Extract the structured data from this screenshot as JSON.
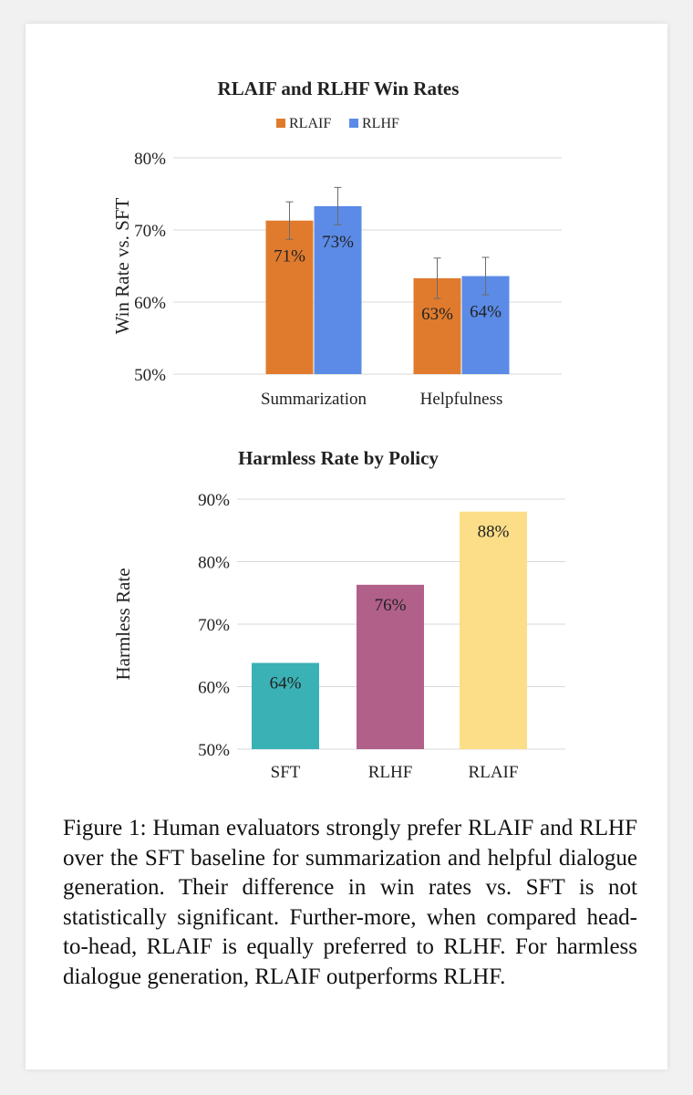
{
  "chart_data": [
    {
      "type": "bar",
      "title": "RLAIF and RLHF Win Rates",
      "ylabel": "Win Rate vs. SFT",
      "xlabel": "",
      "categories": [
        "Summarization",
        "Helpfulness"
      ],
      "series": [
        {
          "name": "RLAIF",
          "color": "#E07B2E",
          "values": [
            71.3,
            63.3
          ],
          "error": [
            2.6,
            2.8
          ],
          "labels": [
            "71%",
            "63%"
          ]
        },
        {
          "name": "RLHF",
          "color": "#5B8BE6",
          "values": [
            73.3,
            63.6
          ],
          "error": [
            2.6,
            2.6
          ],
          "labels": [
            "73%",
            "64%"
          ]
        }
      ],
      "ylim": [
        50,
        80
      ],
      "yticks": [
        50,
        60,
        70,
        80
      ],
      "ytick_labels": [
        "50%",
        "60%",
        "70%",
        "80%"
      ],
      "grid": true,
      "legend": "top-center"
    },
    {
      "type": "bar",
      "title": "Harmless Rate by Policy",
      "ylabel": "Harmless Rate",
      "xlabel": "",
      "categories": [
        "SFT",
        "RLHF",
        "RLAIF"
      ],
      "values": [
        63.8,
        76.3,
        88.0
      ],
      "labels": [
        "64%",
        "76%",
        "88%"
      ],
      "colors": [
        "#3AB1B5",
        "#B1608A",
        "#FCDE88"
      ],
      "ylim": [
        50,
        90
      ],
      "yticks": [
        50,
        60,
        70,
        80,
        90
      ],
      "ytick_labels": [
        "50%",
        "60%",
        "70%",
        "80%",
        "90%"
      ],
      "grid": true,
      "legend": "none"
    }
  ],
  "caption": "Figure 1: Human evaluators strongly prefer RLAIF and RLHF over the SFT baseline for summarization and helpful dialogue generation.  Their difference in win rates vs.  SFT is not statistically significant.  Further-more, when compared head-to-head, RLAIF is equally preferred to RLHF. For harmless dialogue generation, RLAIF outperforms RLHF."
}
